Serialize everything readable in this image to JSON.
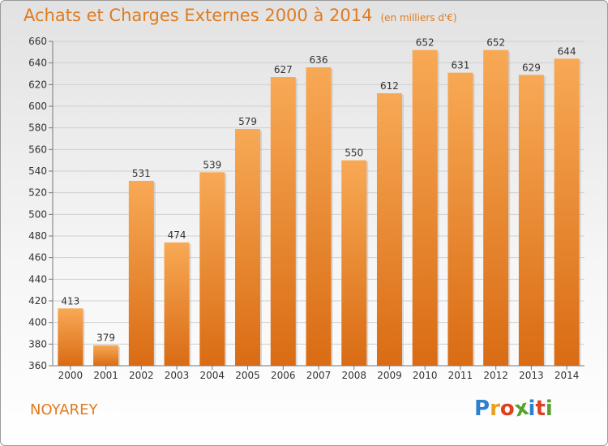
{
  "title": "Achats et Charges Externes 2000 à 2014",
  "unit_note": "(en milliers d'€)",
  "commune": "NOYAREY",
  "logo": {
    "letters": [
      "P",
      "r",
      "o",
      "x",
      "i",
      "t",
      "i"
    ],
    "colors": [
      "#2f7fd0",
      "#e8a020",
      "#e04020",
      "#58a030",
      "#2f7fd0",
      "#e04020",
      "#58a030"
    ]
  },
  "colors": {
    "bar_top": "#f8a955",
    "bar_bottom": "#d96c14",
    "accent": "#e07b20"
  },
  "chart_data": {
    "type": "bar",
    "title": "Achats et Charges Externes 2000 à 2014",
    "categories": [
      "2000",
      "2001",
      "2002",
      "2003",
      "2004",
      "2005",
      "2006",
      "2007",
      "2008",
      "2009",
      "2010",
      "2011",
      "2012",
      "2013",
      "2014"
    ],
    "values": [
      413,
      379,
      531,
      474,
      539,
      579,
      627,
      636,
      550,
      612,
      652,
      631,
      652,
      629,
      644
    ],
    "ylim": [
      360,
      660
    ],
    "yticks": [
      360,
      380,
      400,
      420,
      440,
      460,
      480,
      500,
      520,
      540,
      560,
      580,
      600,
      620,
      640,
      660
    ],
    "grid": true,
    "xlabel": "",
    "ylabel": ""
  }
}
